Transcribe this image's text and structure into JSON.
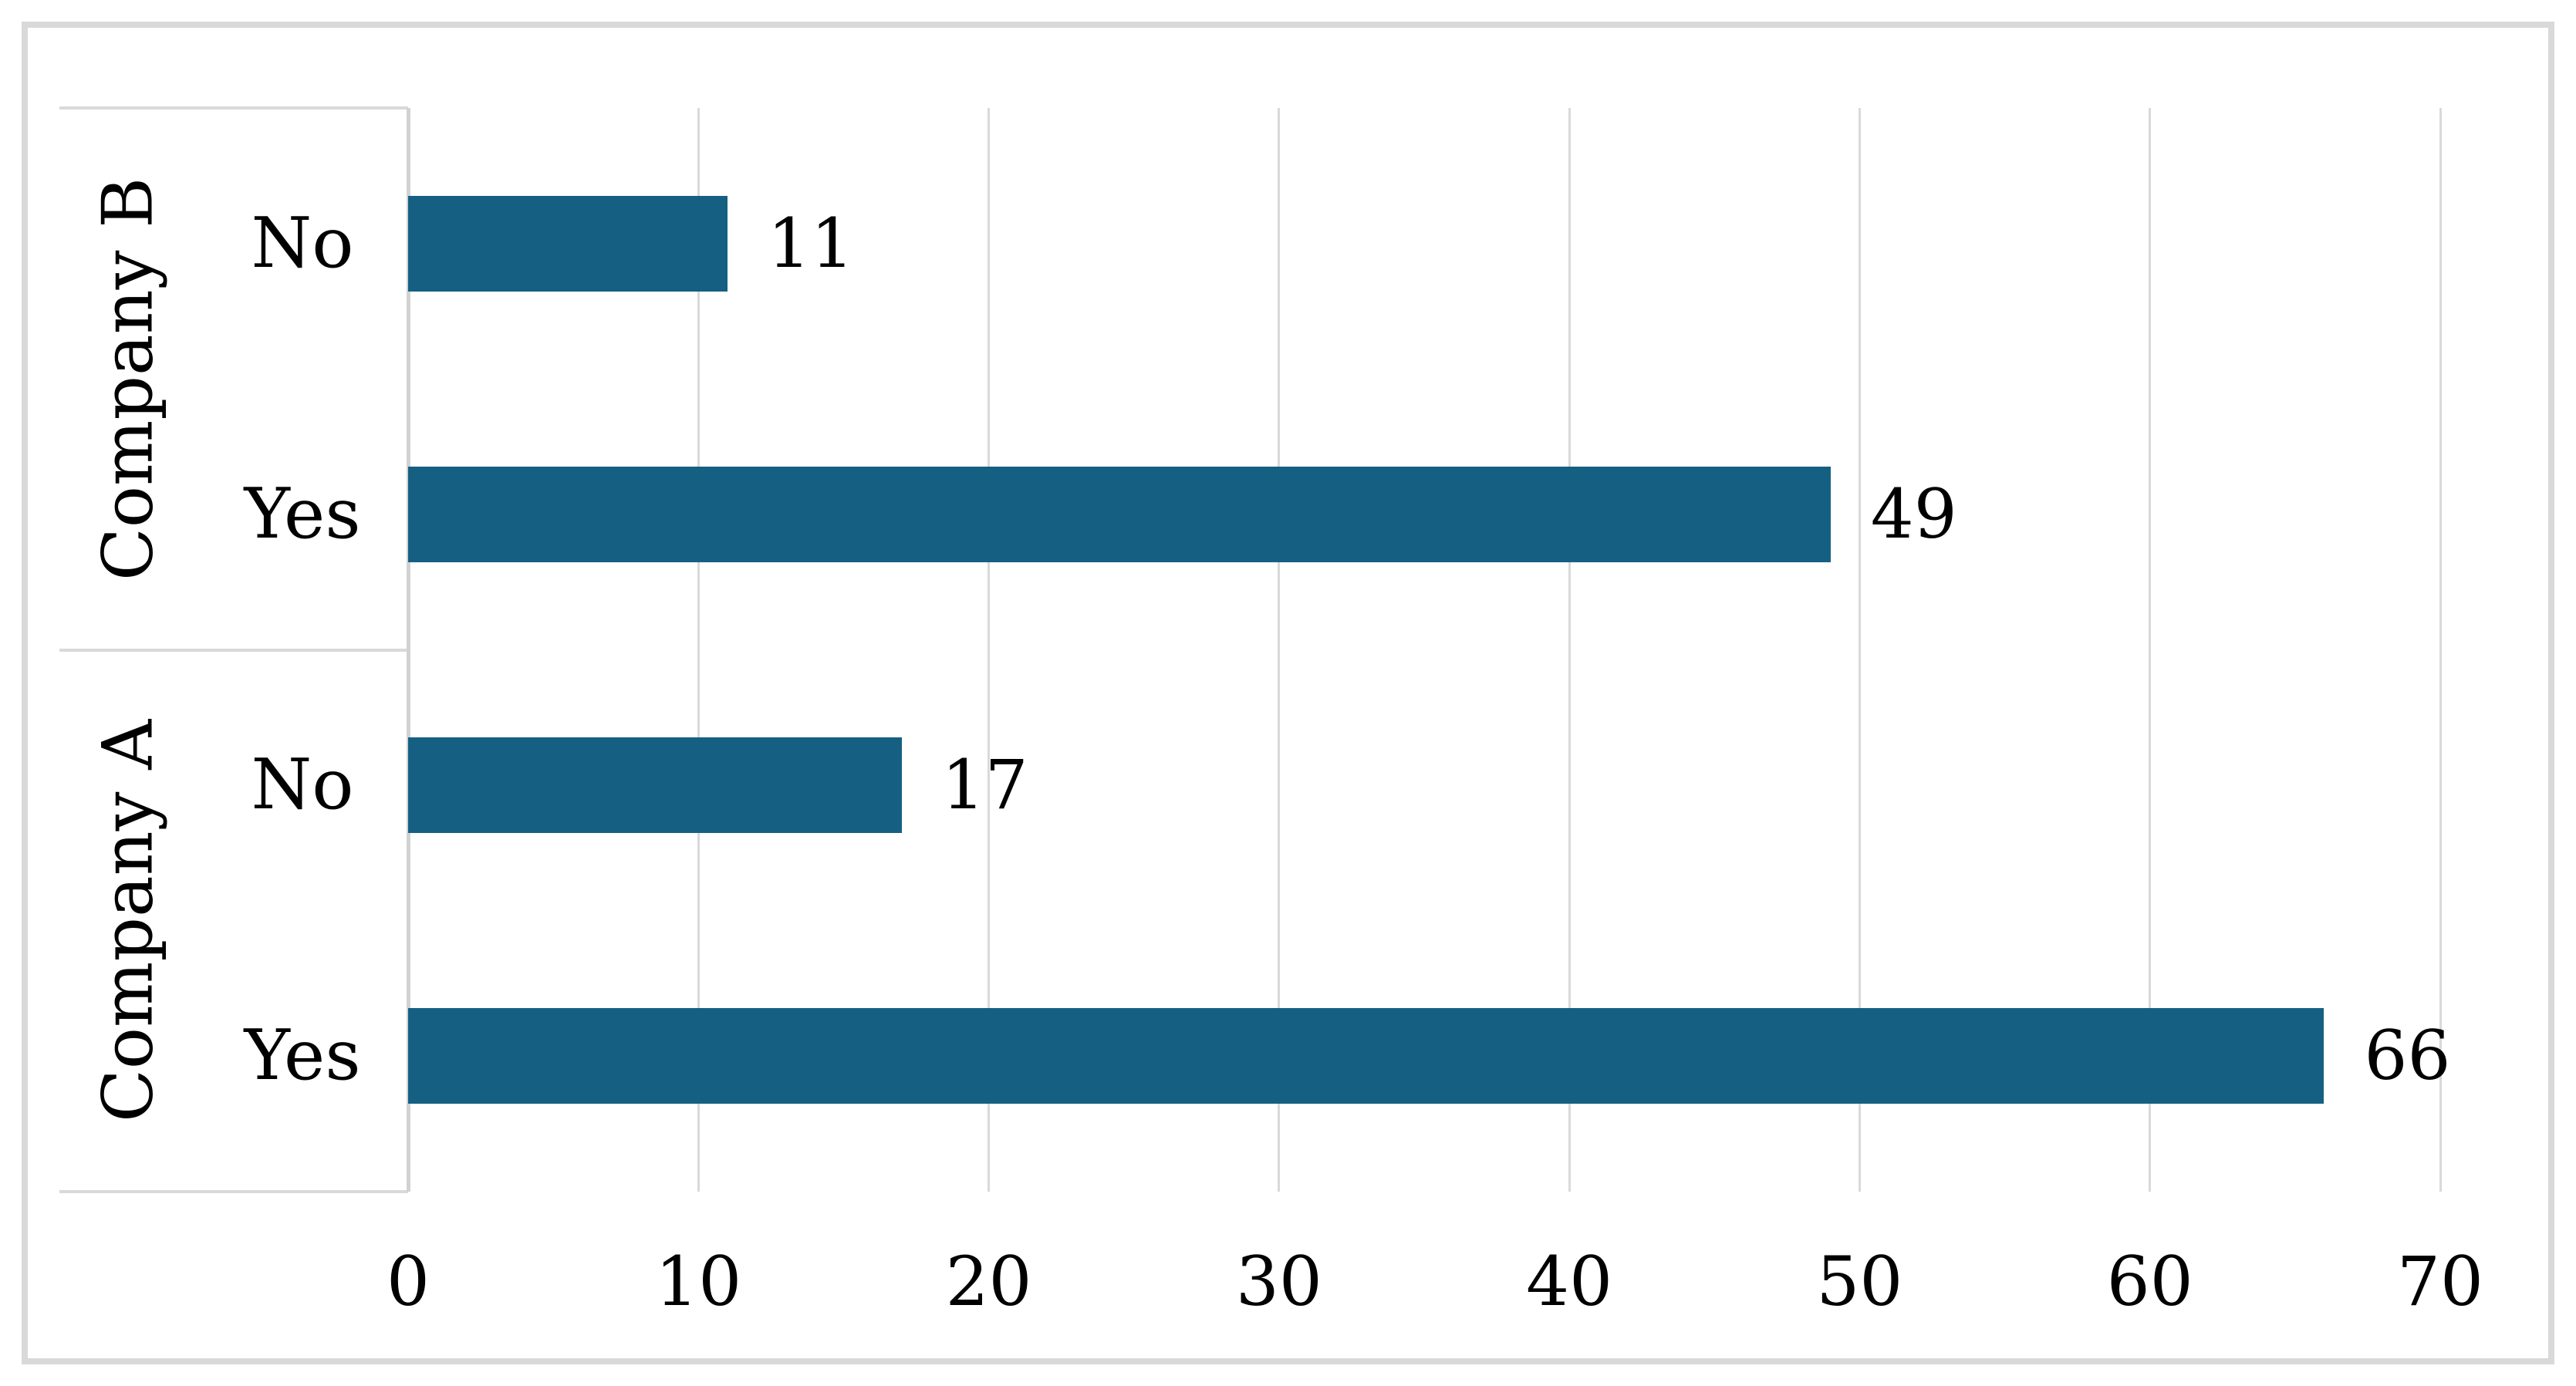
{
  "chart_data": {
    "type": "bar",
    "orientation": "horizontal",
    "title": "",
    "xlabel": "",
    "ylabel": "",
    "x_axis": {
      "min": 0,
      "max": 70,
      "ticks": [
        0,
        10,
        20,
        30,
        40,
        50,
        60,
        70
      ]
    },
    "grid": "vertical-major",
    "legend": "none",
    "data_labels": "outside-end",
    "groups": [
      {
        "label": "Company B"
      },
      {
        "label": "Company A"
      }
    ],
    "rows": [
      {
        "group": "Company B",
        "category": "No",
        "value": 11
      },
      {
        "group": "Company B",
        "category": "Yes",
        "value": 49
      },
      {
        "group": "Company A",
        "category": "No",
        "value": 17
      },
      {
        "group": "Company A",
        "category": "Yes",
        "value": 66
      }
    ],
    "colors": {
      "bar": "#156082",
      "gridline": "#d9d9d9",
      "axis_line": "#d2d2d2",
      "category_frame": "#d9d9d9",
      "outer_border": "#d9d9d9",
      "text": "#000000",
      "background": "#ffffff"
    }
  }
}
